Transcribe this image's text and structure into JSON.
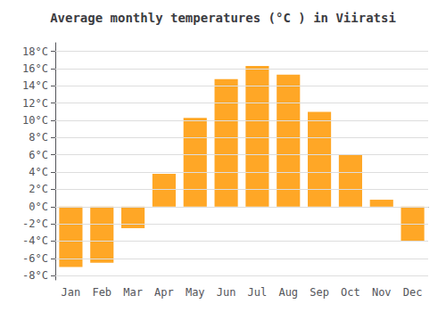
{
  "chart_data": {
    "type": "bar",
    "title": "Average monthly temperatures (°C ) in Viiratsi",
    "categories": [
      "Jan",
      "Feb",
      "Mar",
      "Apr",
      "May",
      "Jun",
      "Jul",
      "Aug",
      "Sep",
      "Oct",
      "Nov",
      "Dec"
    ],
    "values": [
      -7.0,
      -6.5,
      -2.5,
      3.8,
      10.3,
      14.8,
      16.3,
      15.3,
      11.0,
      6.0,
      0.8,
      -4.0
    ],
    "color": "#FFA726",
    "ylim": [
      -8.5,
      19
    ],
    "yticks": [
      {
        "value": -8,
        "label": "-8°C"
      },
      {
        "value": -6,
        "label": "-6°C"
      },
      {
        "value": -4,
        "label": "-4°C"
      },
      {
        "value": -2,
        "label": "-2°C"
      },
      {
        "value": 0,
        "label": "0°C"
      },
      {
        "value": 2,
        "label": "2°C"
      },
      {
        "value": 4,
        "label": "4°C"
      },
      {
        "value": 6,
        "label": "6°C"
      },
      {
        "value": 8,
        "label": "8°C"
      },
      {
        "value": 10,
        "label": "10°C"
      },
      {
        "value": 12,
        "label": "12°C"
      },
      {
        "value": 14,
        "label": "14°C"
      },
      {
        "value": 16,
        "label": "16°C"
      },
      {
        "value": 18,
        "label": "18°C"
      }
    ],
    "grid": true
  }
}
